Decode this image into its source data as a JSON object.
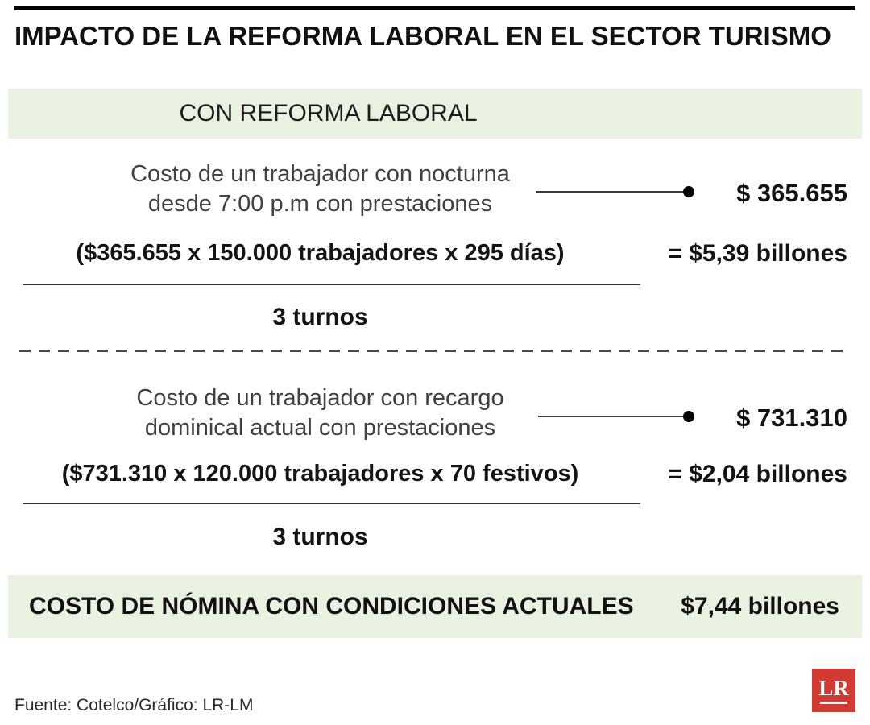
{
  "title": "IMPACTO DE LA REFORMA LABORAL EN EL SECTOR TURISMO",
  "colors": {
    "band_green": "#e9f2e0",
    "logo_red": "#d23a32",
    "text_dark": "#131313",
    "text_gray": "#414141"
  },
  "header_band": {
    "label": "CON REFORMA LABORAL"
  },
  "sections": [
    {
      "desc_line1": "Costo de un trabajador con nocturna",
      "desc_line2": "desde 7:00 p.m con prestaciones",
      "value": "$ 365.655",
      "formula": "($365.655 x 150.000 trabajadores x 295 días)",
      "result": "= $5,39 billones",
      "denominator": "3 turnos"
    },
    {
      "desc_line1": "Costo de un trabajador con recargo",
      "desc_line2": "dominical actual con prestaciones",
      "value": "$ 731.310",
      "formula": "($731.310 x 120.000 trabajadores x 70 festivos)",
      "result": "= $2,04 billones",
      "denominator": "3 turnos"
    }
  ],
  "total_band": {
    "label": "COSTO DE NÓMINA CON CONDICIONES ACTUALES",
    "value": "$7,44 billones"
  },
  "footer": {
    "source": "Fuente: Cotelco/Gráfico: LR-LM",
    "logo_text": "LR"
  }
}
